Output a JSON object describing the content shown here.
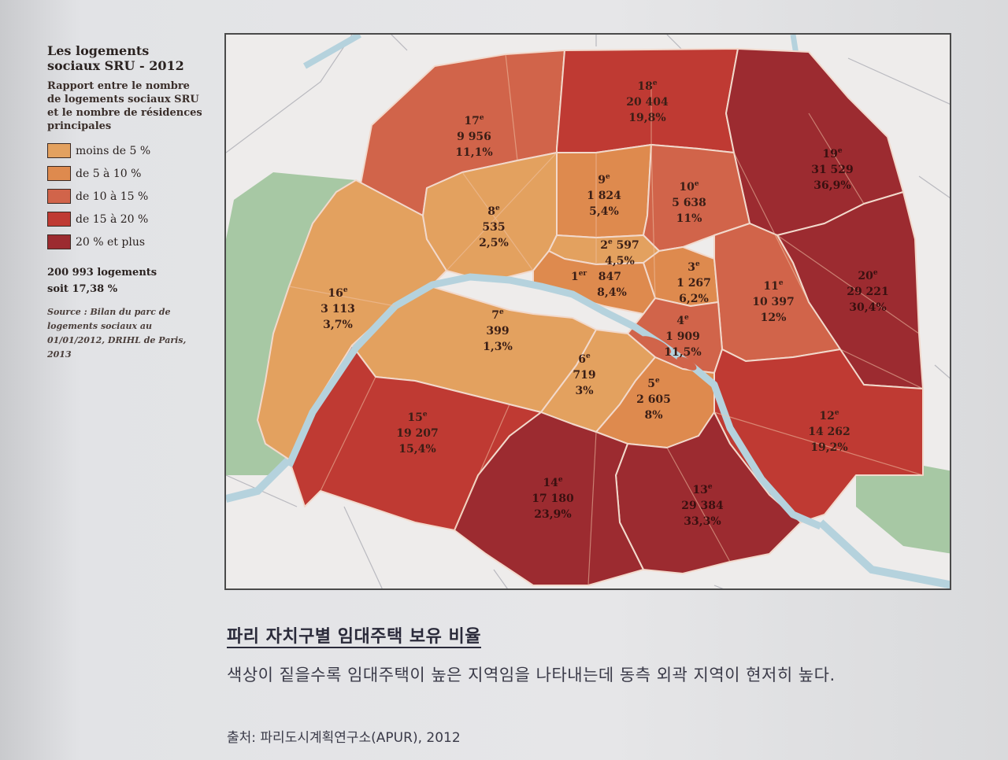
{
  "legend": {
    "title": "Les logements sociaux SRU - 2012",
    "subtitle": "Rapport entre le nombre de logements sociaux SRU et le nombre de résidences principales",
    "items": [
      {
        "label": "moins de 5 %",
        "color": "#e3a15f"
      },
      {
        "label": "de 5 à 10 %",
        "color": "#de8a4e"
      },
      {
        "label": "de 10 à 15 %",
        "color": "#d1644a"
      },
      {
        "label": "de 15 à 20 %",
        "color": "#bf3a33"
      },
      {
        "label": "20 % et plus",
        "color": "#9c2b30"
      }
    ],
    "total_line1": "200 993 logements",
    "total_line2": "soit 17,38 %",
    "source": "Source : Bilan du parc de logements sociaux au 01/01/2012, DRIHL de Paris, 2013"
  },
  "map": {
    "colors": {
      "background": "#eeeceb",
      "park": "#a7c8a4",
      "river": "#b5d2dd",
      "outline": "#f2d9cc",
      "streets": "#f0c4a8"
    },
    "arrondissements": [
      {
        "id": "1",
        "num": "1",
        "suffix": "er",
        "count": "847",
        "pct": "8,4%",
        "value": 8.4,
        "class": 1
      },
      {
        "id": "2",
        "num": "2",
        "suffix": "e",
        "count": "597",
        "pct": "4,5%",
        "value": 4.5,
        "class": 0
      },
      {
        "id": "3",
        "num": "3",
        "suffix": "e",
        "count": "1 267",
        "pct": "6,2%",
        "value": 6.2,
        "class": 1
      },
      {
        "id": "4",
        "num": "4",
        "suffix": "e",
        "count": "1 909",
        "pct": "11,5%",
        "value": 11.5,
        "class": 2
      },
      {
        "id": "5",
        "num": "5",
        "suffix": "e",
        "count": "2 605",
        "pct": "8%",
        "value": 8,
        "class": 1
      },
      {
        "id": "6",
        "num": "6",
        "suffix": "e",
        "count": "719",
        "pct": "3%",
        "value": 3,
        "class": 0
      },
      {
        "id": "7",
        "num": "7",
        "suffix": "e",
        "count": "399",
        "pct": "1,3%",
        "value": 1.3,
        "class": 0
      },
      {
        "id": "8",
        "num": "8",
        "suffix": "e",
        "count": "535",
        "pct": "2,5%",
        "value": 2.5,
        "class": 0
      },
      {
        "id": "9",
        "num": "9",
        "suffix": "e",
        "count": "1 824",
        "pct": "5,4%",
        "value": 5.4,
        "class": 1
      },
      {
        "id": "10",
        "num": "10",
        "suffix": "e",
        "count": "5 638",
        "pct": "11%",
        "value": 11,
        "class": 2
      },
      {
        "id": "11",
        "num": "11",
        "suffix": "e",
        "count": "10 397",
        "pct": "12%",
        "value": 12,
        "class": 2
      },
      {
        "id": "12",
        "num": "12",
        "suffix": "e",
        "count": "14 262",
        "pct": "19,2%",
        "value": 19.2,
        "class": 3
      },
      {
        "id": "13",
        "num": "13",
        "suffix": "e",
        "count": "29 384",
        "pct": "33,3%",
        "value": 33.3,
        "class": 4
      },
      {
        "id": "14",
        "num": "14",
        "suffix": "e",
        "count": "17 180",
        "pct": "23,9%",
        "value": 23.9,
        "class": 4
      },
      {
        "id": "15",
        "num": "15",
        "suffix": "e",
        "count": "19 207",
        "pct": "15,4%",
        "value": 15.4,
        "class": 3
      },
      {
        "id": "16",
        "num": "16",
        "suffix": "e",
        "count": "3 113",
        "pct": "3,7%",
        "value": 3.7,
        "class": 0
      },
      {
        "id": "17",
        "num": "17",
        "suffix": "e",
        "count": "9 956",
        "pct": "11,1%",
        "value": 11.1,
        "class": 2
      },
      {
        "id": "18",
        "num": "18",
        "suffix": "e",
        "count": "20 404",
        "pct": "19,8%",
        "value": 19.8,
        "class": 3
      },
      {
        "id": "19",
        "num": "19",
        "suffix": "e",
        "count": "31 529",
        "pct": "36,9%",
        "value": 36.9,
        "class": 4
      },
      {
        "id": "20",
        "num": "20",
        "suffix": "e",
        "count": "29 221",
        "pct": "30,4%",
        "value": 30.4,
        "class": 4
      }
    ]
  },
  "caption": {
    "title": "파리 자치구별 임대주택 보유 비율",
    "body": "색상이 짙을수록 임대주택이 높은 지역임을 나타내는데 동측 외곽 지역이 현저히 높다.",
    "source": "출처: 파리도시계획연구소(APUR), 2012"
  }
}
